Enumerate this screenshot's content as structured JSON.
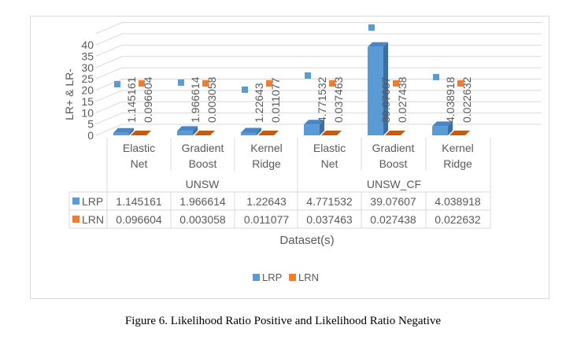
{
  "chart_data": {
    "type": "bar",
    "ylabel": "LR+ & LR-",
    "xlabel": "Dataset(s)",
    "ylim": [
      0,
      45
    ],
    "yticks": [
      "0",
      "5",
      "10",
      "15",
      "20",
      "25",
      "30",
      "35",
      "40"
    ],
    "groups": [
      "UNSW",
      "UNSW_CF"
    ],
    "categories": [
      "Elastic Net",
      "Gradient Boost",
      "Kernel Ridge",
      "Elastic Net",
      "Gradient Boost",
      "Kernel Ridge"
    ],
    "category_lines": [
      [
        "Elastic",
        "Net"
      ],
      [
        "Gradient",
        "Boost"
      ],
      [
        "Kernel",
        "Ridge"
      ],
      [
        "Elastic",
        "Net"
      ],
      [
        "Gradient",
        "Boost"
      ],
      [
        "Kernel",
        "Ridge"
      ]
    ],
    "series": [
      {
        "name": "LRP",
        "color": "#5b9bd5",
        "values": [
          1.145161,
          1.966614,
          1.22643,
          4.771532,
          39.07607,
          4.038918
        ],
        "labels": [
          "1.145161",
          "1.966614",
          "1.22643",
          "4.771532",
          "39.07607",
          "4.038918"
        ]
      },
      {
        "name": "LRN",
        "color": "#ed7d31",
        "values": [
          0.096604,
          0.003058,
          0.011077,
          0.037463,
          0.027438,
          0.022632
        ],
        "labels": [
          "0.096604",
          "0.003058",
          "0.011077",
          "0.037463",
          "0.027438",
          "0.022632"
        ]
      }
    ],
    "data_table": true,
    "legend": "bottom",
    "grid": true
  },
  "caption": "Figure 6. Likelihood Ratio Positive and Likelihood Ratio Negative"
}
